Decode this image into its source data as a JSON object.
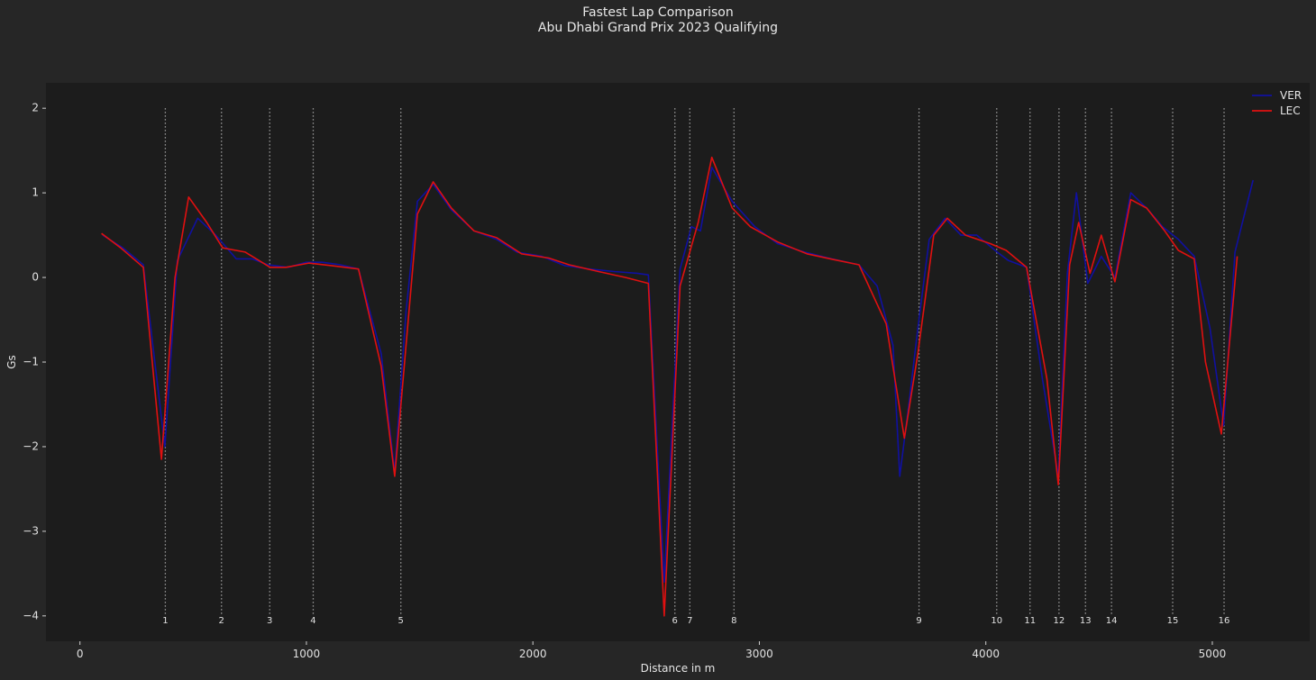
{
  "chart_data": {
    "type": "line",
    "title": "Fastest Lap Comparison",
    "subtitle": "Abu Dhabi Grand Prix 2023 Qualifying",
    "xlabel": "Distance in m",
    "ylabel": "Gs",
    "xlim": [
      -150,
      5430
    ],
    "ylim": [
      -4.3,
      2.3
    ],
    "xticks": [
      0,
      1000,
      2000,
      3000,
      4000,
      5000
    ],
    "yticks": [
      2,
      1,
      0,
      -1,
      -2,
      -3,
      -4
    ],
    "ytick_labels": [
      "2",
      "1",
      "0",
      "−1",
      "−2",
      "−3",
      "−4"
    ],
    "grid": false,
    "legend_position": "top-right",
    "colors": {
      "figure_bg": "#262626",
      "axes_bg": "#1c1c1c",
      "corner_line": "#9a9a9a"
    },
    "corners": [
      {
        "number": "1",
        "distance": 377
      },
      {
        "number": "2",
        "distance": 625
      },
      {
        "number": "3",
        "distance": 838
      },
      {
        "number": "4",
        "distance": 1030
      },
      {
        "number": "5",
        "distance": 1417
      },
      {
        "number": "6",
        "distance": 2627
      },
      {
        "number": "7",
        "distance": 2693
      },
      {
        "number": "8",
        "distance": 2888
      },
      {
        "number": "9",
        "distance": 3705
      },
      {
        "number": "10",
        "distance": 4048
      },
      {
        "number": "11",
        "distance": 4195
      },
      {
        "number": "12",
        "distance": 4323
      },
      {
        "number": "13",
        "distance": 4440
      },
      {
        "number": "14",
        "distance": 4555
      },
      {
        "number": "15",
        "distance": 4825
      },
      {
        "number": "16",
        "distance": 5052
      }
    ],
    "series": [
      {
        "name": "VER",
        "color": "#1010a0",
        "x": [
          100,
          190,
          280,
          375,
          430,
          520,
          600,
          690,
          760,
          830,
          920,
          1000,
          1070,
          1150,
          1230,
          1330,
          1390,
          1440,
          1490,
          1560,
          1640,
          1740,
          1840,
          1930,
          2040,
          2140,
          2250,
          2360,
          2460,
          2510,
          2580,
          2650,
          2700,
          2740,
          2790,
          2880,
          2980,
          3080,
          3200,
          3320,
          3440,
          3520,
          3590,
          3620,
          3660,
          3700,
          3750,
          3820,
          3890,
          3960,
          4050,
          4100,
          4180,
          4250,
          4320,
          4360,
          4400,
          4450,
          4510,
          4570,
          4640,
          4710,
          4780,
          4850,
          4920,
          4990,
          5050,
          5100,
          5180
        ],
        "y": [
          0.5,
          0.35,
          0.15,
          -2.0,
          0.2,
          0.7,
          0.5,
          0.22,
          0.22,
          0.15,
          0.12,
          0.18,
          0.18,
          0.15,
          0.1,
          -0.9,
          -2.3,
          -0.4,
          0.9,
          1.1,
          0.8,
          0.55,
          0.45,
          0.3,
          0.25,
          0.14,
          0.1,
          0.07,
          0.05,
          0.03,
          -3.6,
          0.1,
          0.6,
          0.55,
          1.3,
          0.9,
          0.6,
          0.4,
          0.3,
          0.22,
          0.15,
          -0.1,
          -0.8,
          -2.35,
          -1.5,
          -0.6,
          0.45,
          0.7,
          0.5,
          0.5,
          0.3,
          0.2,
          0.12,
          -1.2,
          -2.35,
          0.05,
          1.0,
          -0.07,
          0.25,
          0.0,
          1.0,
          0.82,
          0.6,
          0.45,
          0.25,
          -0.6,
          -1.75,
          0.3,
          1.15
        ]
      },
      {
        "name": "LEC",
        "color": "#e01010",
        "x": [
          95,
          180,
          280,
          360,
          420,
          480,
          560,
          630,
          730,
          840,
          910,
          1010,
          1110,
          1230,
          1330,
          1390,
          1490,
          1560,
          1640,
          1740,
          1840,
          1950,
          2070,
          2160,
          2290,
          2410,
          2510,
          2580,
          2650,
          2730,
          2790,
          2880,
          2960,
          3080,
          3210,
          3330,
          3440,
          3560,
          3640,
          3700,
          3770,
          3830,
          3910,
          4020,
          4090,
          4180,
          4270,
          4320,
          4370,
          4410,
          4460,
          4510,
          4570,
          4640,
          4710,
          4790,
          4850,
          4920,
          4970,
          5040,
          5110
        ],
        "y": [
          0.52,
          0.35,
          0.12,
          -2.15,
          0.0,
          0.95,
          0.65,
          0.35,
          0.3,
          0.12,
          0.12,
          0.17,
          0.14,
          0.1,
          -1.05,
          -2.35,
          0.75,
          1.13,
          0.82,
          0.55,
          0.47,
          0.28,
          0.23,
          0.15,
          0.07,
          0.0,
          -0.07,
          -4.0,
          -0.1,
          0.65,
          1.42,
          0.82,
          0.6,
          0.42,
          0.28,
          0.21,
          0.15,
          -0.55,
          -1.9,
          -0.9,
          0.5,
          0.7,
          0.5,
          0.4,
          0.32,
          0.12,
          -1.2,
          -2.45,
          0.15,
          0.65,
          0.05,
          0.5,
          -0.05,
          0.92,
          0.82,
          0.55,
          0.32,
          0.22,
          -1.0,
          -1.85,
          0.25
        ]
      }
    ]
  }
}
